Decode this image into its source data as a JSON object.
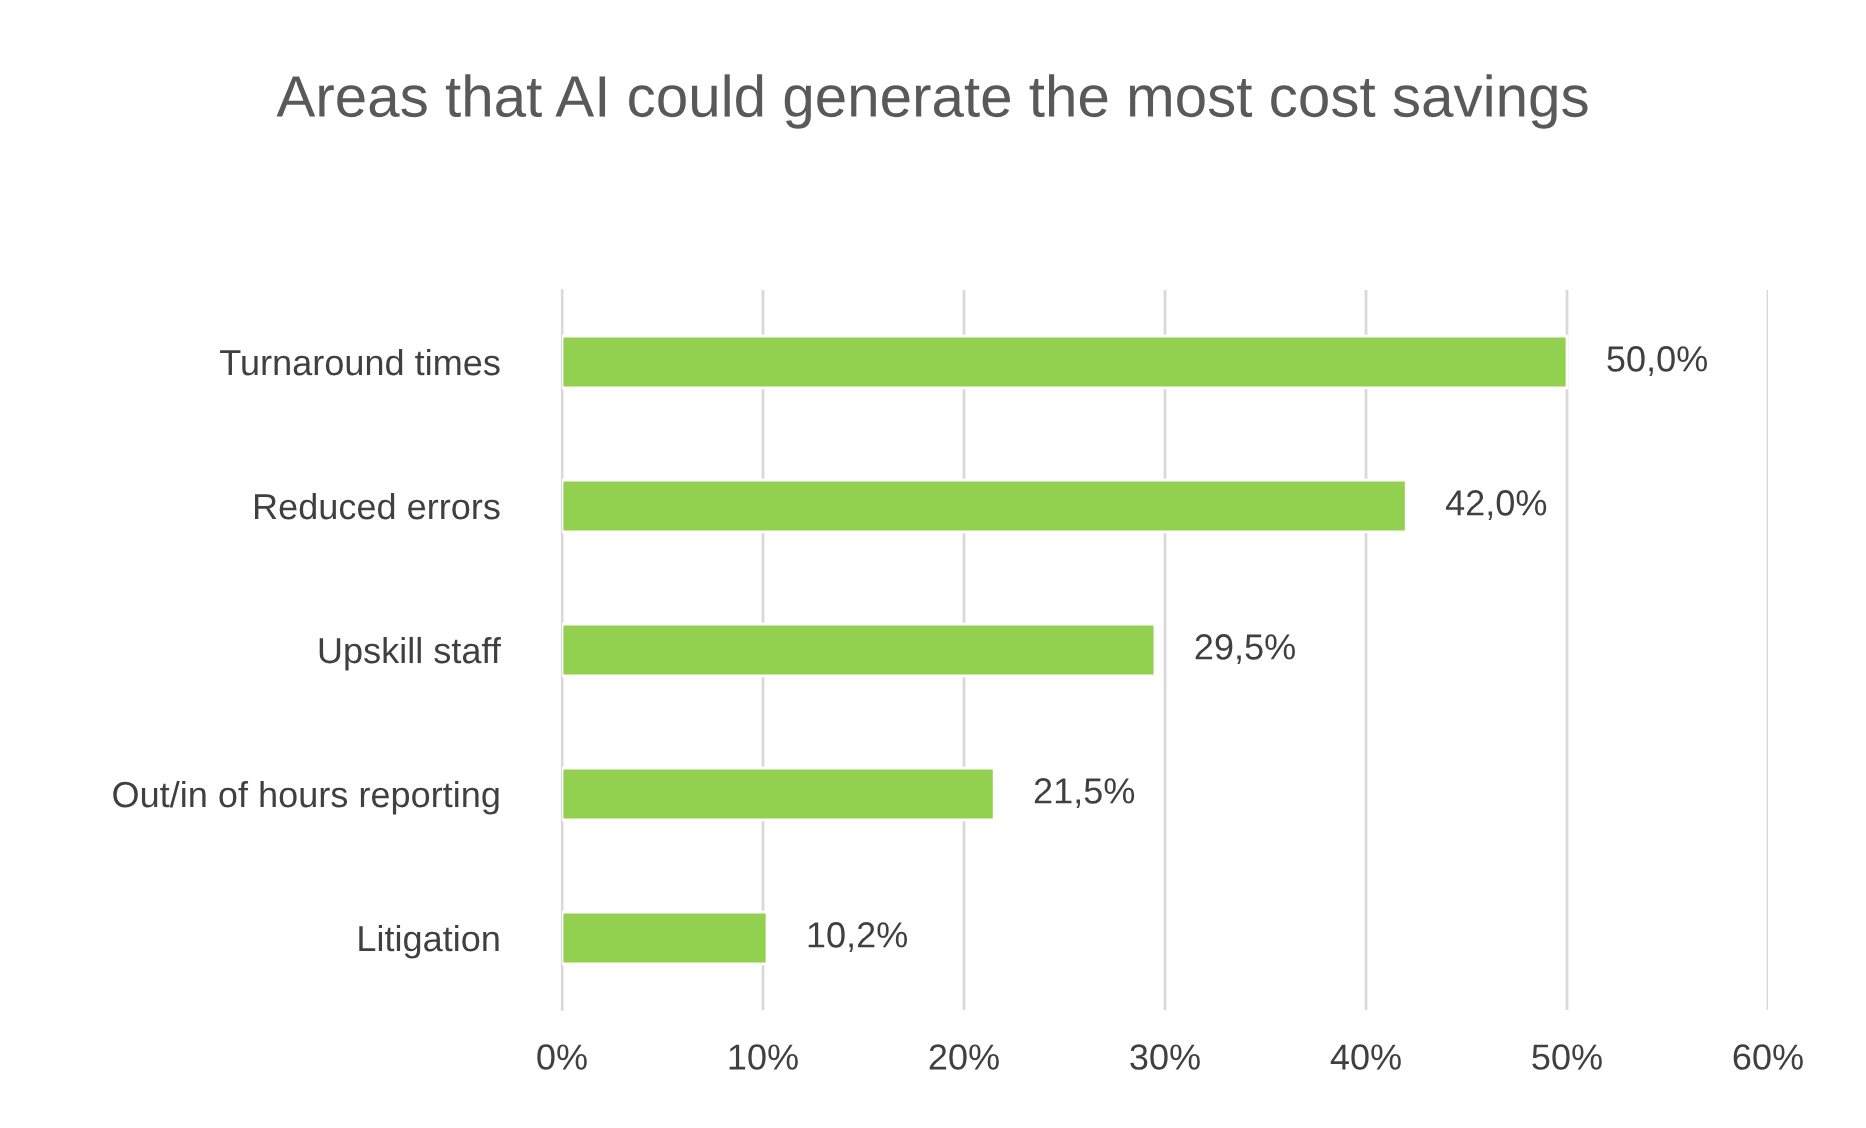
{
  "chart_data": {
    "type": "bar",
    "orientation": "horizontal",
    "title": "Areas that AI could generate the most cost savings",
    "categories": [
      "Turnaround times",
      "Reduced errors",
      "Upskill staff",
      "Out/in of hours reporting",
      "Litigation"
    ],
    "values": [
      50.0,
      42.0,
      29.5,
      21.5,
      10.2
    ],
    "value_labels": [
      "50,0%",
      "42,0%",
      "29,5%",
      "21,5%",
      "10,2%"
    ],
    "color": "#92d050",
    "xlim": [
      0,
      60
    ],
    "xticks": [
      {
        "value": 0,
        "label": "0%"
      },
      {
        "value": 10,
        "label": "10%"
      },
      {
        "value": 20,
        "label": "20%"
      },
      {
        "value": 30,
        "label": "30%"
      },
      {
        "value": 40,
        "label": "40%"
      },
      {
        "value": 50,
        "label": "50%"
      },
      {
        "value": 60,
        "label": "60%"
      }
    ],
    "grid": "x",
    "legend": false
  }
}
